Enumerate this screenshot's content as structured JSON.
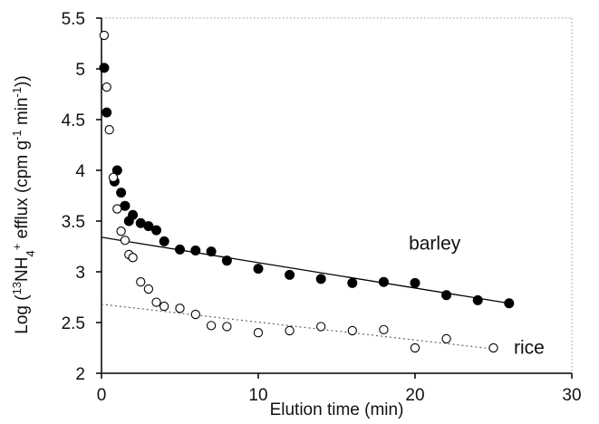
{
  "chart_data": {
    "type": "scatter",
    "title": "",
    "xlabel": "Elution time (min)",
    "ylabel": {
      "prefix": "Log (",
      "sup1": "13",
      "main": "NH",
      "sub": "4",
      "sup2": "+",
      "mid": " efflux (cpm g",
      "sup3": "-1",
      "mid2": " min",
      "sup4": "-1",
      "suffix": "))"
    },
    "xlim": [
      0,
      30
    ],
    "ylim": [
      2,
      5.5
    ],
    "xticks": [
      "0",
      "10",
      "20",
      "30"
    ],
    "yticks": [
      "2",
      "2.5",
      "3",
      "3.5",
      "4",
      "4.5",
      "5",
      "5.5"
    ],
    "grid": false,
    "series": [
      {
        "name": "barley",
        "marker": "filled-circle",
        "color": "#000000",
        "x": [
          0.17,
          0.33,
          0.83,
          1.0,
          1.25,
          1.5,
          1.75,
          2.0,
          2.5,
          3.0,
          3.5,
          4.0,
          5.0,
          6.0,
          7.0,
          8.0,
          10.0,
          12.0,
          14.0,
          16.0,
          18.0,
          20.0,
          22.0,
          24.0,
          26.0
        ],
        "y": [
          5.01,
          4.57,
          3.89,
          4.0,
          3.78,
          3.65,
          3.5,
          3.56,
          3.48,
          3.45,
          3.41,
          3.3,
          3.22,
          3.21,
          3.2,
          3.11,
          3.03,
          2.97,
          2.93,
          2.89,
          2.9,
          2.89,
          2.77,
          2.72,
          2.69
        ],
        "fit": {
          "x": [
            0,
            26
          ],
          "y": [
            3.34,
            2.69
          ],
          "style": "solid"
        }
      },
      {
        "name": "rice",
        "marker": "open-circle",
        "color": "#000000",
        "x": [
          0.17,
          0.33,
          0.5,
          0.75,
          1.0,
          1.25,
          1.5,
          1.75,
          2.0,
          2.5,
          3.0,
          3.5,
          4.0,
          5.0,
          6.0,
          7.0,
          8.0,
          10.0,
          12.0,
          14.0,
          16.0,
          18.0,
          20.0,
          22.0,
          25.0
        ],
        "y": [
          5.33,
          4.82,
          4.4,
          3.93,
          3.62,
          3.4,
          3.31,
          3.17,
          3.14,
          2.9,
          2.83,
          2.7,
          2.66,
          2.64,
          2.58,
          2.47,
          2.46,
          2.4,
          2.42,
          2.46,
          2.42,
          2.43,
          2.25,
          2.34,
          2.25
        ],
        "fit": {
          "x": [
            0,
            25
          ],
          "y": [
            2.68,
            2.24
          ],
          "style": "dotted"
        }
      }
    ],
    "annotations": {
      "barley": "barley",
      "rice": "rice"
    }
  }
}
